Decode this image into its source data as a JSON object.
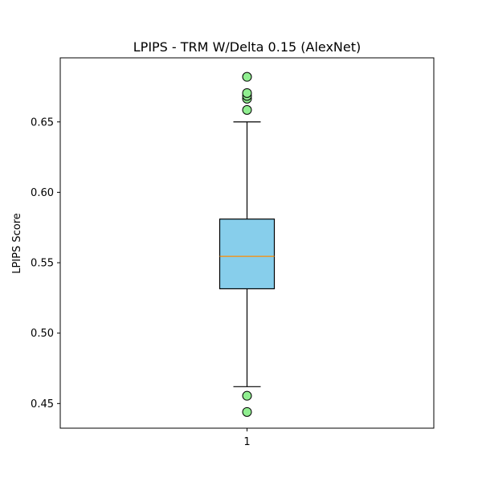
{
  "chart_data": {
    "type": "box",
    "title": "LPIPS - TRM W/Delta 0.15 (AlexNet)",
    "xlabel": "",
    "ylabel": "LPIPS Score",
    "ylim": [
      0.4325,
      0.6955
    ],
    "yticks": [
      "0.45",
      "0.50",
      "0.55",
      "0.60",
      "0.65"
    ],
    "categories": [
      "1"
    ],
    "box": {
      "whisker_low": 0.462,
      "q1": 0.5315,
      "median": 0.5545,
      "q3": 0.581,
      "whisker_high": 0.65
    },
    "outliers": [
      0.6585,
      0.6665,
      0.6685,
      0.6705,
      0.682,
      0.4555,
      0.444
    ],
    "colors": {
      "box_fill": "#87ceeb",
      "median_line": "#ff8c00",
      "outlier_fill": "#90ee90",
      "edge": "#000000"
    },
    "grid": false
  }
}
